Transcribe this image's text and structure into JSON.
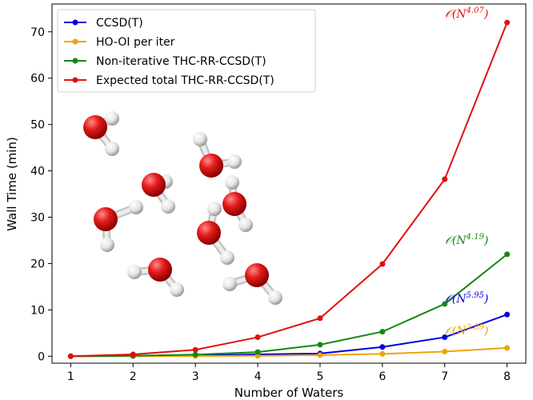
{
  "chart_data": {
    "type": "line",
    "xlabel": "Number of Waters",
    "ylabel": "Wall Time (min)",
    "x": [
      1,
      2,
      3,
      4,
      5,
      6,
      7,
      8
    ],
    "xlim": [
      0.7,
      8.3
    ],
    "ylim": [
      -1.5,
      76
    ],
    "xticks": [
      1,
      2,
      3,
      4,
      5,
      6,
      7,
      8
    ],
    "yticks": [
      0,
      10,
      20,
      30,
      40,
      50,
      60,
      70
    ],
    "grid": false,
    "legend_position": "top-left",
    "series": [
      {
        "name": "CCSD(T)",
        "color": "#0000dd",
        "values": [
          0,
          0.05,
          0.15,
          0.4,
          0.6,
          2.0,
          4.1,
          9.0
        ],
        "annotation": {
          "prefix": "𝒪(N",
          "exp": "5.95",
          "suffix": ")"
        }
      },
      {
        "name": "HO-OI per iter",
        "color": "#f0a30a",
        "values": [
          0,
          0.02,
          0.05,
          0.1,
          0.25,
          0.5,
          1.0,
          1.8
        ],
        "annotation": {
          "prefix": "𝒪(N",
          "exp": "3.89",
          "suffix": ")"
        }
      },
      {
        "name": "Non-iterative THC-RR-CCSD(T)",
        "color": "#118811",
        "values": [
          0,
          0.1,
          0.35,
          0.9,
          2.5,
          5.3,
          11.3,
          22.0
        ],
        "annotation": {
          "prefix": "𝒪(N",
          "exp": "4.19",
          "suffix": ")"
        }
      },
      {
        "name": "Expected total THC-RR-CCSD(T)",
        "color": "#e01010",
        "values": [
          0,
          0.4,
          1.4,
          4.1,
          8.2,
          19.9,
          38.2,
          72.0
        ],
        "annotation": {
          "prefix": "𝒪(N",
          "exp": "4.07",
          "suffix": ")"
        }
      }
    ],
    "inset": "water-cluster-molecules"
  }
}
